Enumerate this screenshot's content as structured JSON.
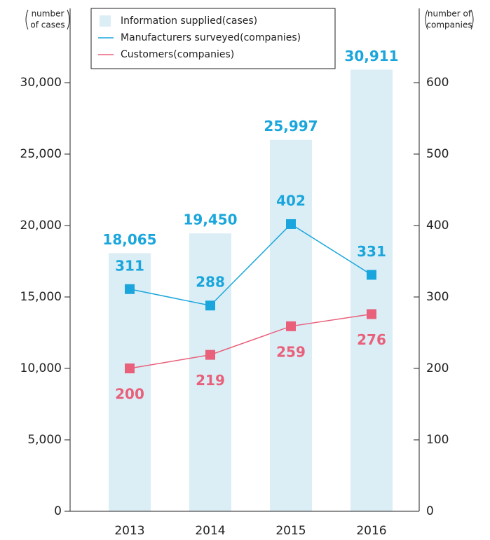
{
  "chart_data": {
    "type": "bar-line",
    "categories": [
      "2013",
      "2014",
      "2015",
      "2016"
    ],
    "ylabel": [
      "number",
      "of cases"
    ],
    "y2label": [
      "number of",
      "companies"
    ],
    "ylim": [
      0,
      35000
    ],
    "yticks": [
      0,
      {
        "value": 5000,
        "label": "5,000"
      },
      {
        "value": 10000,
        "label": "10,000"
      },
      {
        "value": 15000,
        "label": "15,000"
      },
      {
        "value": 20000,
        "label": "20,000"
      },
      {
        "value": 25000,
        "label": "25,000"
      },
      {
        "value": 30000,
        "label": "30,000"
      }
    ],
    "y2lim": [
      0,
      700
    ],
    "y2ticks": [
      0,
      100,
      200,
      300,
      400,
      500,
      600
    ],
    "series": [
      {
        "name": "Information supplied(cases)",
        "type": "bar",
        "color": "#dbeef6",
        "label_color": "#1aa6dc",
        "values": [
          18065,
          19450,
          25997,
          30911
        ],
        "value_labels": [
          "18,065",
          "19,450",
          "25,997",
          "30,911"
        ]
      },
      {
        "name": "Manufacturers surveyed(companies)",
        "type": "line",
        "axis": "y2",
        "color": "#1aa6dc",
        "values": [
          311,
          288,
          402,
          331
        ]
      },
      {
        "name": "Customers(companies)",
        "type": "line",
        "axis": "y2",
        "color": "#e8607a",
        "values": [
          200,
          219,
          259,
          276
        ]
      }
    ]
  }
}
